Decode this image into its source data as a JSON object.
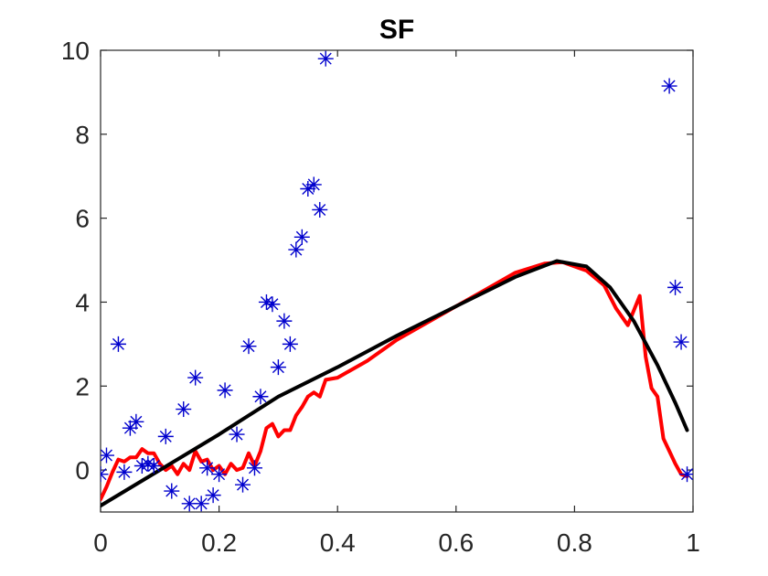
{
  "chart_data": {
    "type": "scatter",
    "title": "SF",
    "xlabel": "",
    "ylabel": "",
    "xlim": [
      0,
      1
    ],
    "ylim": [
      -1,
      10
    ],
    "grid": false,
    "legend": "none",
    "x_ticks": [
      "0",
      "0.2",
      "0.4",
      "0.6",
      "0.8",
      "1"
    ],
    "y_ticks": [
      "0",
      "2",
      "4",
      "6",
      "8",
      "10"
    ],
    "x_tick_values": [
      0,
      0.2,
      0.4,
      0.6,
      0.8,
      1
    ],
    "y_tick_values": [
      0,
      2,
      4,
      6,
      8,
      10
    ],
    "series": [
      {
        "kind": "scatter",
        "marker": "asterisk",
        "color": "#0000CD",
        "points": [
          [
            0.0,
            -0.1
          ],
          [
            0.01,
            0.35
          ],
          [
            0.03,
            3.0
          ],
          [
            0.04,
            -0.05
          ],
          [
            0.05,
            1.0
          ],
          [
            0.06,
            1.15
          ],
          [
            0.07,
            0.1
          ],
          [
            0.08,
            0.15
          ],
          [
            0.09,
            0.1
          ],
          [
            0.11,
            0.8
          ],
          [
            0.12,
            -0.5
          ],
          [
            0.14,
            1.45
          ],
          [
            0.15,
            -0.8
          ],
          [
            0.16,
            2.2
          ],
          [
            0.17,
            -0.8
          ],
          [
            0.18,
            0.05
          ],
          [
            0.19,
            -0.6
          ],
          [
            0.2,
            -0.1
          ],
          [
            0.21,
            1.9
          ],
          [
            0.23,
            0.85
          ],
          [
            0.24,
            -0.35
          ],
          [
            0.25,
            2.95
          ],
          [
            0.26,
            0.05
          ],
          [
            0.27,
            1.75
          ],
          [
            0.28,
            4.0
          ],
          [
            0.29,
            3.95
          ],
          [
            0.3,
            2.45
          ],
          [
            0.31,
            3.55
          ],
          [
            0.32,
            3.0
          ],
          [
            0.33,
            5.25
          ],
          [
            0.34,
            5.55
          ],
          [
            0.35,
            6.7
          ],
          [
            0.36,
            6.8
          ],
          [
            0.37,
            6.2
          ],
          [
            0.38,
            9.8
          ],
          [
            0.96,
            9.15
          ],
          [
            0.97,
            4.35
          ],
          [
            0.98,
            3.05
          ],
          [
            0.99,
            -0.1
          ]
        ]
      },
      {
        "kind": "line",
        "color": "#FF0000",
        "points": [
          [
            0.0,
            -0.7
          ],
          [
            0.01,
            -0.4
          ],
          [
            0.02,
            -0.05
          ],
          [
            0.03,
            0.25
          ],
          [
            0.04,
            0.2
          ],
          [
            0.05,
            0.3
          ],
          [
            0.06,
            0.3
          ],
          [
            0.07,
            0.5
          ],
          [
            0.08,
            0.4
          ],
          [
            0.09,
            0.4
          ],
          [
            0.1,
            0.15
          ],
          [
            0.11,
            0.0
          ],
          [
            0.12,
            0.1
          ],
          [
            0.13,
            -0.1
          ],
          [
            0.14,
            0.15
          ],
          [
            0.15,
            0.0
          ],
          [
            0.16,
            0.45
          ],
          [
            0.17,
            0.2
          ],
          [
            0.18,
            0.25
          ],
          [
            0.19,
            0.0
          ],
          [
            0.2,
            0.1
          ],
          [
            0.21,
            -0.1
          ],
          [
            0.22,
            0.15
          ],
          [
            0.23,
            0.0
          ],
          [
            0.24,
            0.05
          ],
          [
            0.25,
            0.4
          ],
          [
            0.26,
            0.1
          ],
          [
            0.27,
            0.45
          ],
          [
            0.28,
            1.0
          ],
          [
            0.29,
            1.1
          ],
          [
            0.3,
            0.8
          ],
          [
            0.31,
            0.95
          ],
          [
            0.32,
            0.95
          ],
          [
            0.33,
            1.3
          ],
          [
            0.34,
            1.5
          ],
          [
            0.35,
            1.75
          ],
          [
            0.36,
            1.85
          ],
          [
            0.37,
            1.75
          ],
          [
            0.38,
            2.15
          ],
          [
            0.4,
            2.2
          ],
          [
            0.45,
            2.6
          ],
          [
            0.5,
            3.1
          ],
          [
            0.55,
            3.5
          ],
          [
            0.6,
            3.9
          ],
          [
            0.65,
            4.3
          ],
          [
            0.7,
            4.7
          ],
          [
            0.75,
            4.92
          ],
          [
            0.78,
            4.95
          ],
          [
            0.82,
            4.75
          ],
          [
            0.85,
            4.4
          ],
          [
            0.87,
            3.85
          ],
          [
            0.89,
            3.45
          ],
          [
            0.91,
            4.15
          ],
          [
            0.92,
            2.7
          ],
          [
            0.93,
            1.95
          ],
          [
            0.94,
            1.75
          ],
          [
            0.95,
            0.75
          ],
          [
            0.96,
            0.45
          ],
          [
            0.97,
            0.15
          ],
          [
            0.98,
            -0.1
          ],
          [
            0.99,
            -0.15
          ]
        ]
      },
      {
        "kind": "line",
        "color": "#000000",
        "points": [
          [
            0.0,
            -0.85
          ],
          [
            0.1,
            0.0
          ],
          [
            0.2,
            0.85
          ],
          [
            0.3,
            1.75
          ],
          [
            0.4,
            2.45
          ],
          [
            0.5,
            3.2
          ],
          [
            0.6,
            3.9
          ],
          [
            0.7,
            4.6
          ],
          [
            0.77,
            4.98
          ],
          [
            0.82,
            4.85
          ],
          [
            0.86,
            4.35
          ],
          [
            0.9,
            3.55
          ],
          [
            0.94,
            2.5
          ],
          [
            0.97,
            1.6
          ],
          [
            0.99,
            0.95
          ]
        ]
      }
    ],
    "colors": {
      "axis": "#262626",
      "scatter": "#0000CD",
      "red_line": "#FF0000",
      "black_line": "#000000"
    }
  }
}
